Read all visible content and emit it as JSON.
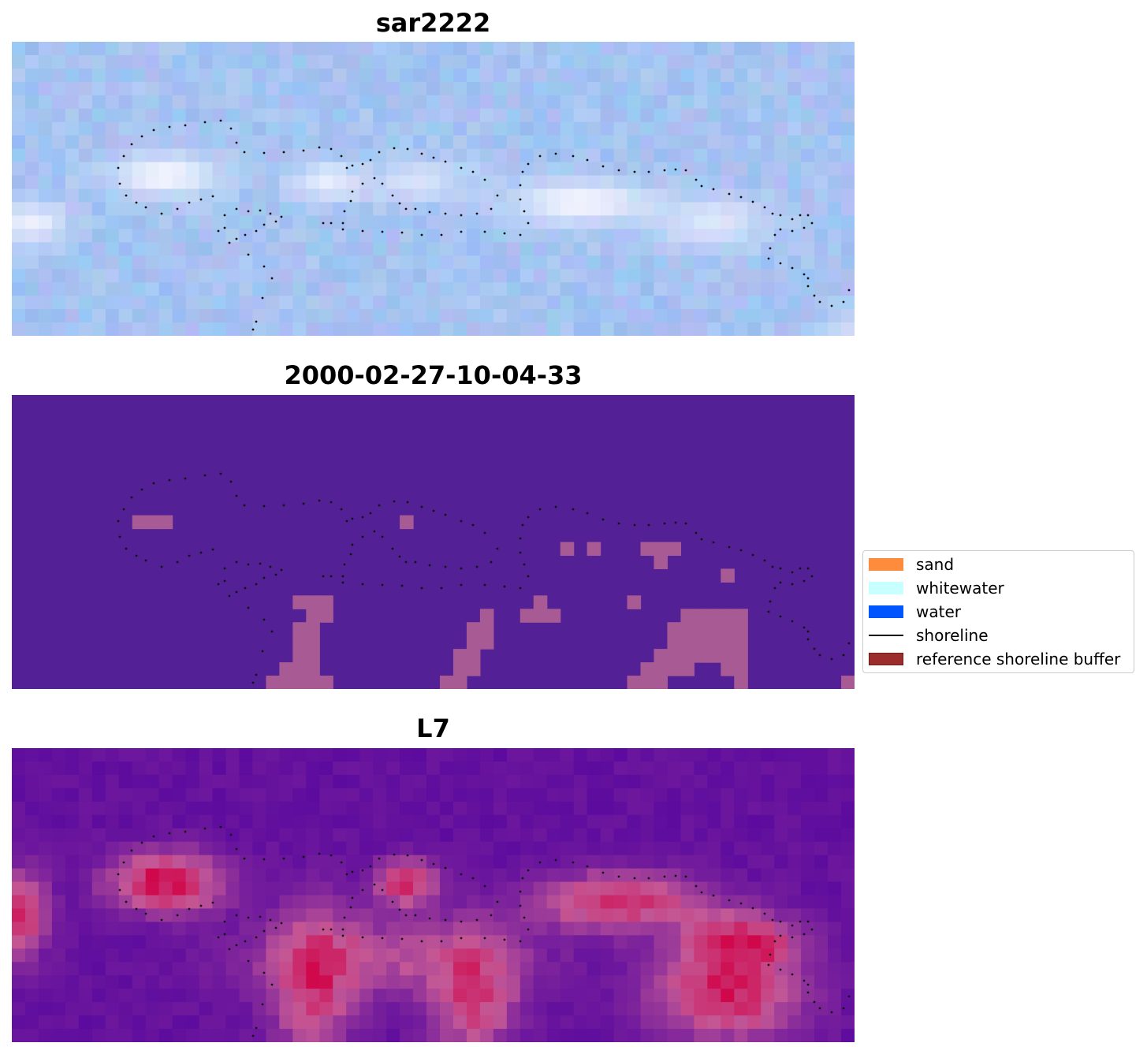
{
  "panels": [
    {
      "title": "sar2222"
    },
    {
      "title": "2000-02-27-10-04-33"
    },
    {
      "title": "L7"
    }
  ],
  "legend": {
    "items": [
      {
        "label": "sand",
        "color": "#ff8c3c"
      },
      {
        "label": "whitewater",
        "color": "#c8ffff"
      },
      {
        "label": "water",
        "color": "#0055ff"
      },
      {
        "label": "shoreline",
        "color": "#000000"
      },
      {
        "label": "reference shoreline buffer",
        "color": "#9b2d2d",
        "edge": "#7a1c1c"
      }
    ]
  },
  "colors": {
    "classification_background": "#532096",
    "classification_patch": "#a85a94",
    "mndwi_low": "#5c0b9e",
    "mndwi_high": "#d0084b"
  }
}
